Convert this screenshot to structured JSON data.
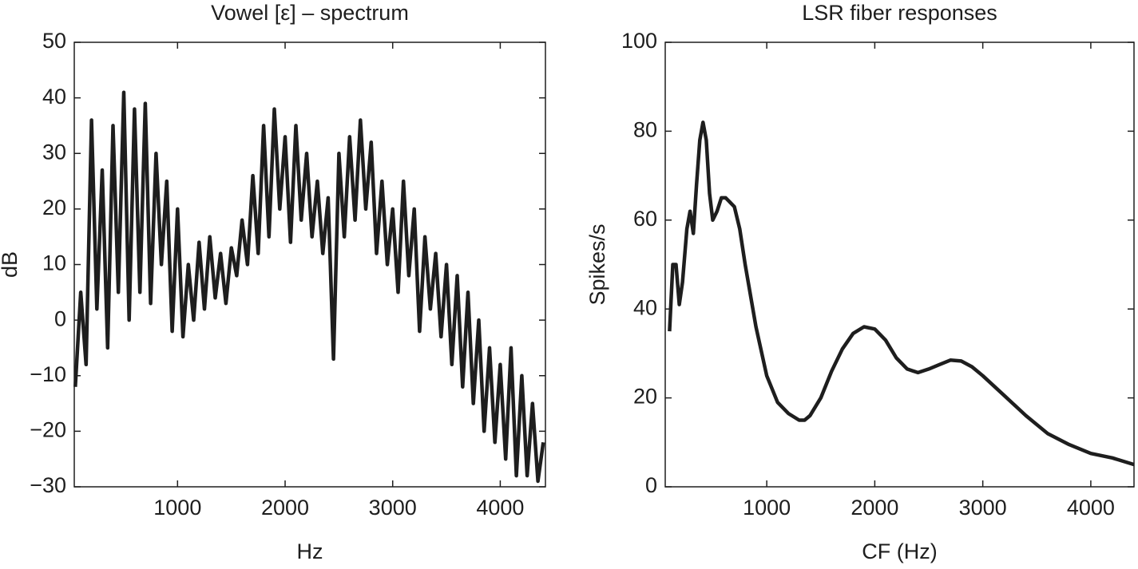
{
  "chart_data": [
    {
      "type": "line",
      "title": "Vowel [ε] – spectrum",
      "xlabel": "Hz",
      "ylabel": "dB",
      "x": [
        50,
        100,
        150,
        200,
        250,
        300,
        350,
        400,
        450,
        500,
        550,
        600,
        650,
        700,
        750,
        800,
        850,
        900,
        950,
        1000,
        1050,
        1100,
        1150,
        1200,
        1250,
        1300,
        1350,
        1400,
        1450,
        1500,
        1550,
        1600,
        1650,
        1700,
        1750,
        1800,
        1850,
        1900,
        1950,
        2000,
        2050,
        2100,
        2150,
        2200,
        2250,
        2300,
        2350,
        2400,
        2450,
        2500,
        2550,
        2600,
        2650,
        2700,
        2750,
        2800,
        2850,
        2900,
        2950,
        3000,
        3050,
        3100,
        3150,
        3200,
        3250,
        3300,
        3350,
        3400,
        3450,
        3500,
        3550,
        3600,
        3650,
        3700,
        3750,
        3800,
        3850,
        3900,
        3950,
        4000,
        4050,
        4100,
        4150,
        4200,
        4250,
        4300,
        4350,
        4400
      ],
      "series": [
        {
          "color": "#1e1e1e",
          "values": [
            -12,
            5,
            -8,
            36,
            2,
            27,
            -5,
            35,
            5,
            41,
            0,
            38,
            5,
            39,
            3,
            30,
            10,
            25,
            -2,
            20,
            -3,
            10,
            0,
            14,
            2,
            15,
            4,
            12,
            3,
            13,
            8,
            18,
            10,
            26,
            12,
            35,
            15,
            38,
            20,
            33,
            14,
            35,
            18,
            30,
            15,
            25,
            12,
            22,
            -7,
            30,
            15,
            33,
            18,
            36,
            20,
            32,
            12,
            25,
            10,
            20,
            5,
            25,
            8,
            20,
            -2,
            15,
            2,
            12,
            -3,
            10,
            -8,
            8,
            -12,
            5,
            -15,
            0,
            -20,
            -5,
            -22,
            -8,
            -25,
            -5,
            -28,
            -10,
            -28,
            -15,
            -29,
            -22
          ]
        }
      ],
      "xlim": [
        40,
        4420
      ],
      "xticks": [
        1000,
        2000,
        3000,
        4000
      ],
      "ylim": [
        -30,
        50
      ],
      "yticks": [
        {
          "value": -30,
          "label": "−30"
        },
        {
          "value": -20,
          "label": "−20"
        },
        {
          "value": -10,
          "label": "−10"
        },
        0,
        10,
        20,
        30,
        40,
        50
      ],
      "grid": false
    },
    {
      "type": "line",
      "title": "LSR fiber responses",
      "xlabel": "CF (Hz)",
      "ylabel": "Spikes/s",
      "x": [
        100,
        130,
        160,
        190,
        220,
        260,
        290,
        320,
        350,
        380,
        410,
        440,
        470,
        500,
        540,
        580,
        620,
        660,
        700,
        750,
        800,
        900,
        1000,
        1100,
        1200,
        1300,
        1350,
        1400,
        1500,
        1600,
        1700,
        1800,
        1900,
        2000,
        2100,
        2200,
        2300,
        2400,
        2500,
        2600,
        2700,
        2800,
        2900,
        3000,
        3200,
        3400,
        3600,
        3800,
        4000,
        4200,
        4400
      ],
      "series": [
        {
          "color": "#1e1e1e",
          "values": [
            35,
            50,
            50,
            41,
            46,
            58,
            62,
            57,
            68,
            78,
            82,
            78,
            66,
            60,
            62,
            65,
            65,
            64,
            63,
            58,
            50,
            36,
            25,
            19,
            16.5,
            15,
            15,
            16,
            20,
            26,
            31,
            34.5,
            36,
            35.5,
            33,
            29,
            26.5,
            25.7,
            26.5,
            27.5,
            28.5,
            28.3,
            27,
            25,
            20.5,
            16,
            12,
            9.5,
            7.5,
            6.5,
            5
          ]
        }
      ],
      "xlim": [
        60,
        4400
      ],
      "xticks": [
        1000,
        2000,
        3000,
        4000
      ],
      "ylim": [
        0,
        100
      ],
      "yticks": [
        0,
        20,
        40,
        60,
        80,
        100
      ],
      "grid": false
    }
  ]
}
